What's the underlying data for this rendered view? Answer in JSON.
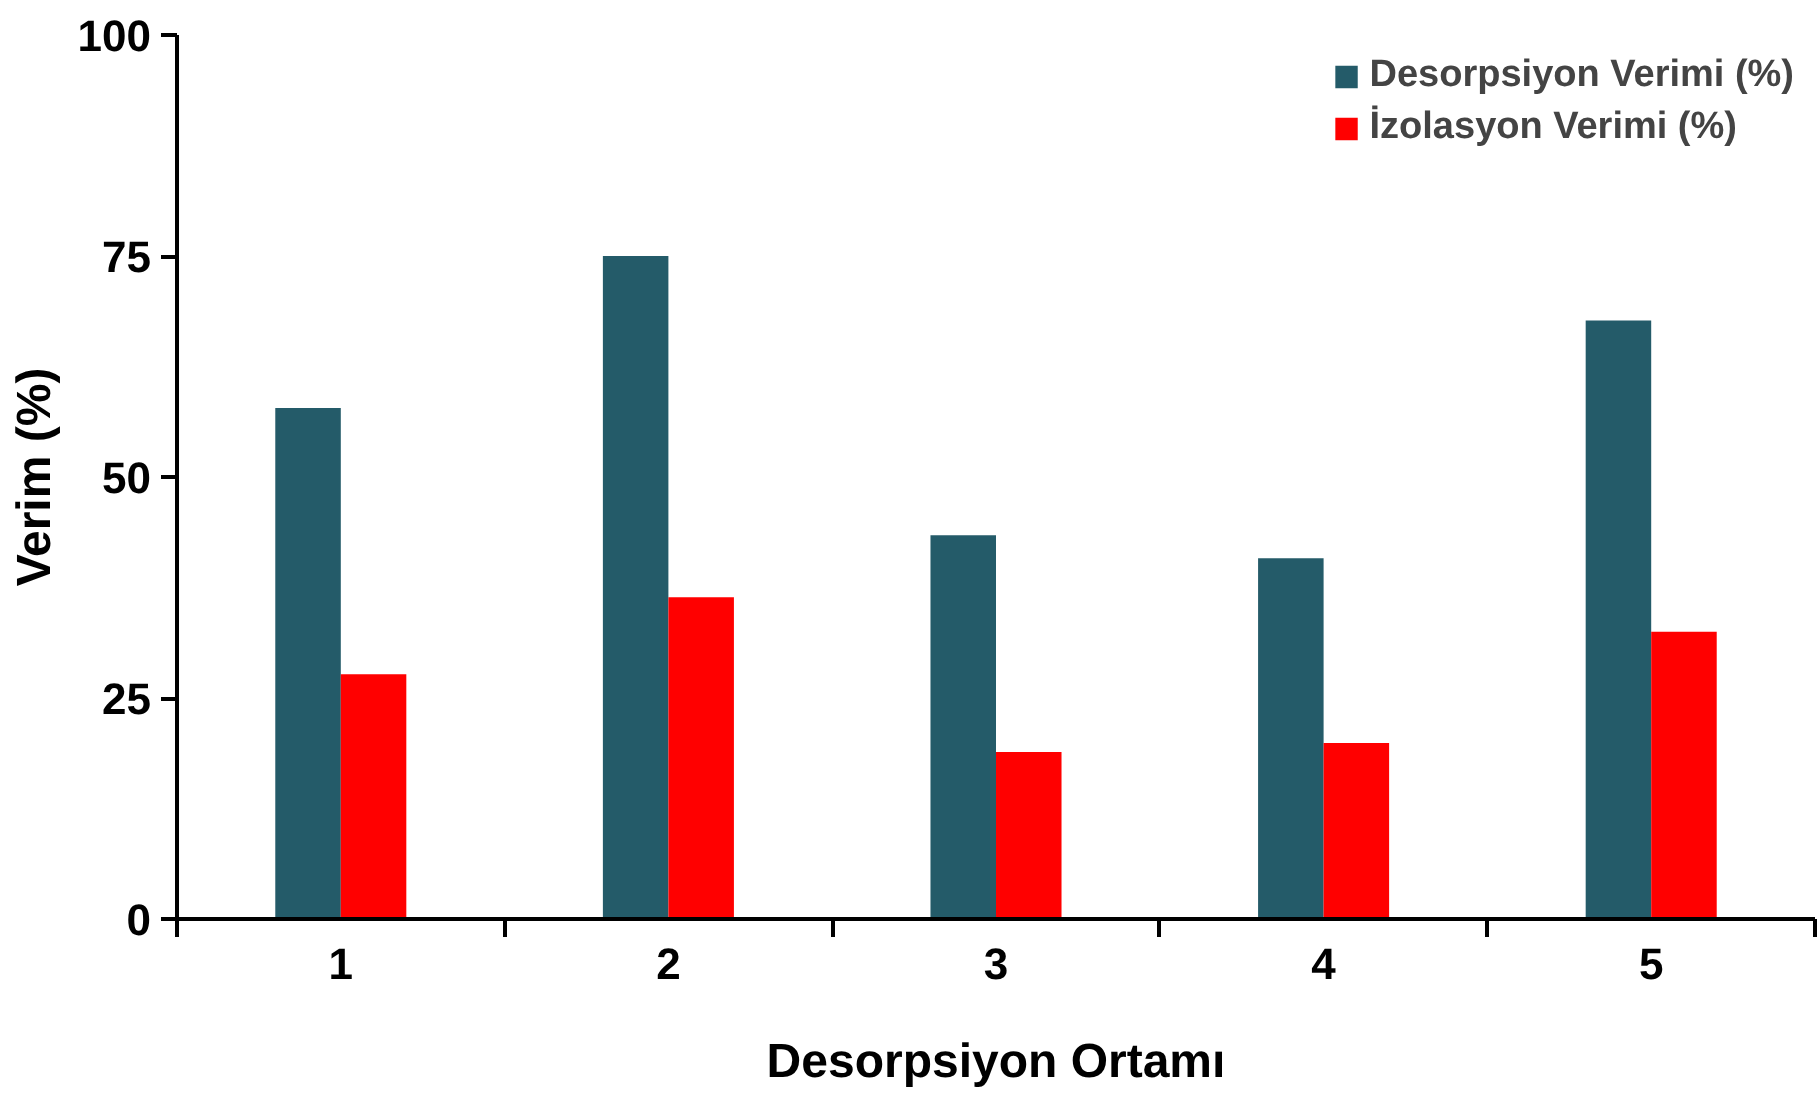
{
  "chart_data": {
    "type": "bar",
    "xlabel": "Desorpsiyon Ortamı",
    "ylabel": "Verim (%)",
    "categories": [
      "1",
      "2",
      "3",
      "4",
      "5"
    ],
    "series": [
      {
        "name": "Desorpsiyon Verimi (%)",
        "color": "#245b69",
        "values": [
          57.8,
          75,
          43.4,
          40.8,
          67.7
        ]
      },
      {
        "name": "İzolasyon Verimi (%)",
        "color": "#ff0000",
        "values": [
          27.7,
          36.4,
          18.9,
          19.9,
          32.5
        ]
      }
    ],
    "ylim": [
      0,
      100
    ],
    "yticks": [
      0,
      25,
      50,
      75,
      100
    ],
    "grid": false,
    "legend": "top right"
  }
}
